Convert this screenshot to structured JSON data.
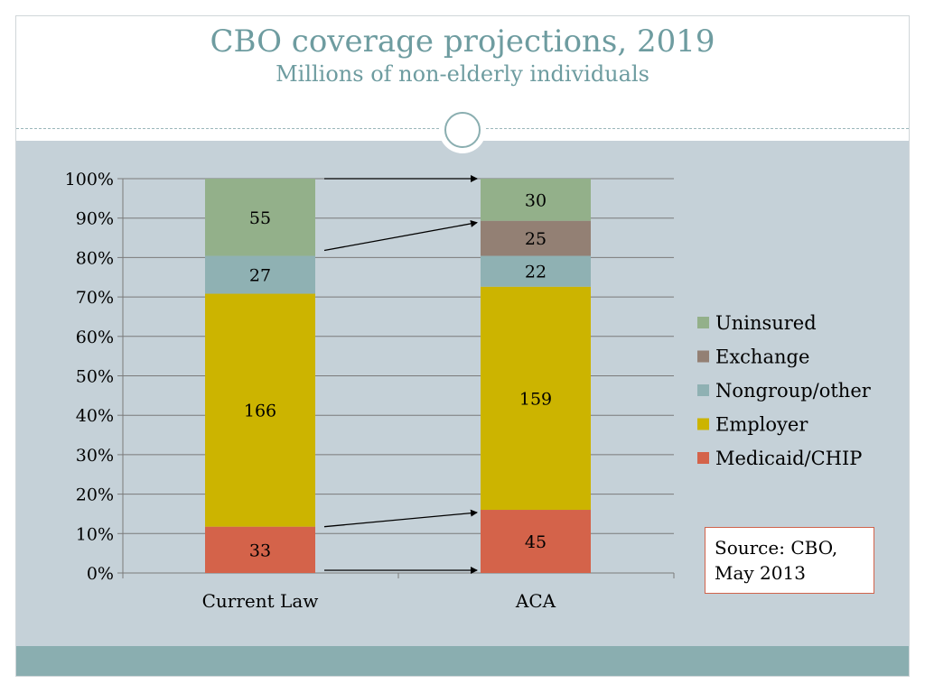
{
  "chart_data": {
    "type": "bar",
    "stacked": "percent",
    "title": "CBO coverage projections, 2019",
    "subtitle": "Millions of non-elderly individuals",
    "categories": [
      "Current Law",
      "ACA"
    ],
    "series": [
      {
        "name": "Medicaid/CHIP",
        "values": [
          33,
          45
        ],
        "color": "#d4634a"
      },
      {
        "name": "Employer",
        "values": [
          166,
          159
        ],
        "color": "#ccb400"
      },
      {
        "name": "Nongroup/other",
        "values": [
          27,
          22
        ],
        "color": "#8fb1b3"
      },
      {
        "name": "Exchange",
        "values": [
          0,
          25
        ],
        "color": "#938074"
      },
      {
        "name": "Uninsured",
        "values": [
          55,
          30
        ],
        "color": "#93b08a"
      }
    ],
    "ytick_labels": [
      "0%",
      "10%",
      "20%",
      "30%",
      "40%",
      "50%",
      "60%",
      "70%",
      "80%",
      "90%",
      "100%"
    ],
    "ylim": [
      0,
      100
    ],
    "grid": true,
    "legend_position": "right",
    "source_note": "Source: CBO, May 2013"
  }
}
